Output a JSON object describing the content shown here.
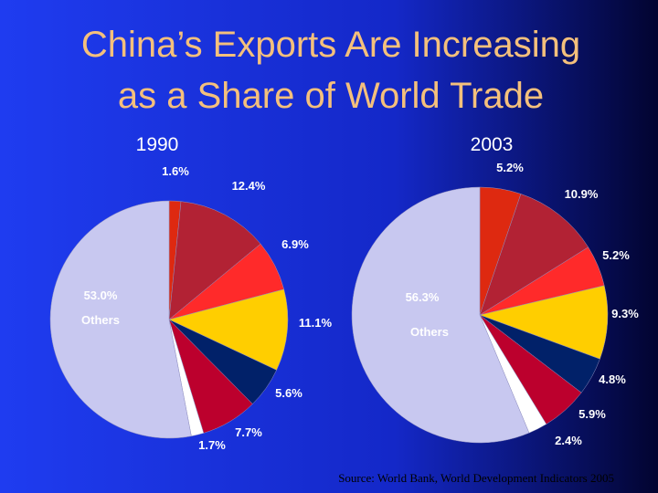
{
  "slide": {
    "title_lines": [
      "China’s Exports Are Increasing",
      "as a Share of World Trade"
    ],
    "source": "Source: World Bank, World Development Indicators 2005"
  },
  "chart_data": [
    {
      "type": "pie",
      "title": "1990",
      "categories": [
        null,
        null,
        null,
        null,
        null,
        null,
        null,
        "Others"
      ],
      "values": [
        1.6,
        12.4,
        6.9,
        11.1,
        5.6,
        7.7,
        1.7,
        53.0
      ],
      "value_labels": [
        "1.6%",
        "12.4%",
        "6.9%",
        "11.1%",
        "5.6%",
        "7.7%",
        "1.7%",
        "53.0%"
      ],
      "colors": [
        "#de2910",
        "#b22234",
        "#ff2a2a",
        "#ffce00",
        "#012169",
        "#bc002d",
        "#ffffff",
        "#c8c8f0"
      ]
    },
    {
      "type": "pie",
      "title": "2003",
      "categories": [
        null,
        null,
        null,
        null,
        null,
        null,
        null,
        "Others"
      ],
      "values": [
        5.2,
        10.9,
        5.2,
        9.3,
        4.8,
        5.9,
        2.4,
        56.3
      ],
      "value_labels": [
        "5.2%",
        "10.9%",
        "5.2%",
        "9.3%",
        "4.8%",
        "5.9%",
        "2.4%",
        "56.3%"
      ],
      "colors": [
        "#de2910",
        "#b22234",
        "#ff2a2a",
        "#ffce00",
        "#012169",
        "#bc002d",
        "#ffffff",
        "#c8c8f0"
      ]
    }
  ]
}
